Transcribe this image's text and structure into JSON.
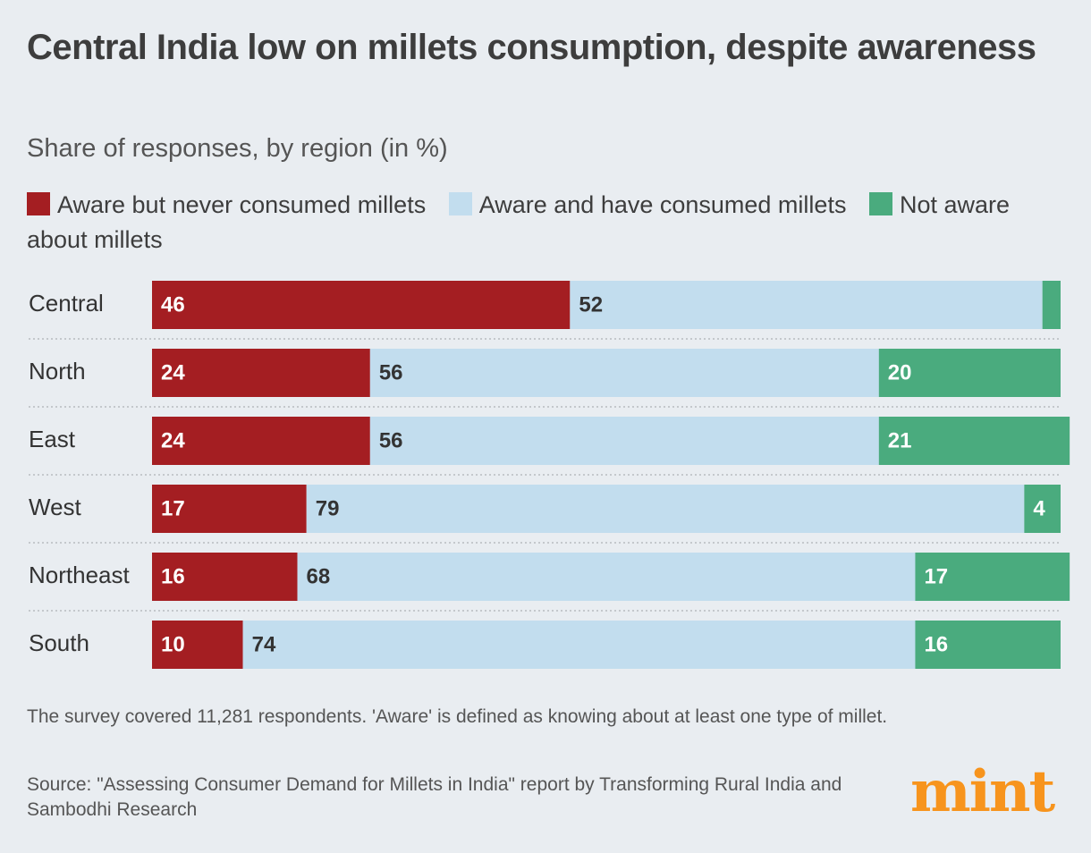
{
  "chart_data": {
    "type": "bar",
    "orientation": "horizontal",
    "stacked": true,
    "title": "Central India low on millets consumption, despite awareness",
    "subtitle": "Share of responses, by region (in %)",
    "categories": [
      "Central",
      "North",
      "East",
      "West",
      "Northeast",
      "South"
    ],
    "series": [
      {
        "name": "Aware but never consumed millets",
        "color": "#a41e22",
        "values": [
          46,
          24,
          24,
          17,
          16,
          10
        ]
      },
      {
        "name": "Aware and have consumed millets",
        "color": "#c2ddee",
        "values": [
          52,
          56,
          56,
          79,
          68,
          74
        ]
      },
      {
        "name": "Not aware about millets",
        "color": "#4aab7e",
        "values": [
          2,
          20,
          21,
          4,
          17,
          16
        ]
      }
    ],
    "xlim": [
      0,
      100
    ],
    "note": "The survey covered 11,281 respondents. 'Aware' is defined as knowing about at least one type of millet.",
    "source": "Source: \"Assessing Consumer Demand for Millets in India\" report by Transforming Rural India and Sambodhi Research"
  },
  "logo": "mint"
}
